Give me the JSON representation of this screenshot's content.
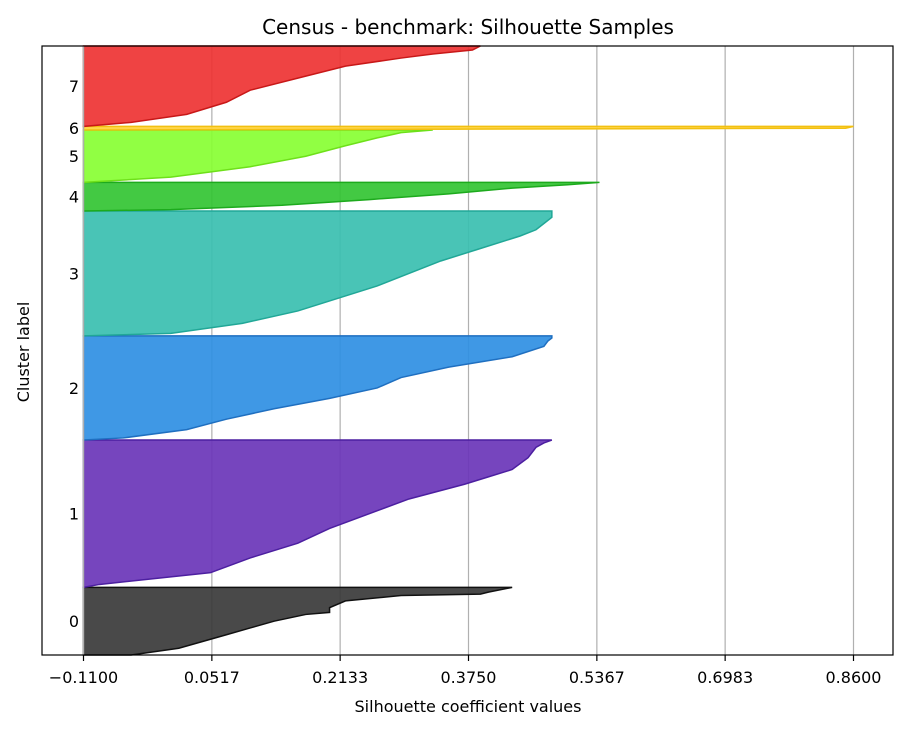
{
  "chart_data": {
    "type": "area",
    "title": "Census - benchmark: Silhouette Samples",
    "xlabel": "Silhouette coefficient values",
    "ylabel": "Cluster label",
    "xlim": [
      -0.11,
      0.86
    ],
    "xticks": [
      -0.11,
      0.0517,
      0.2133,
      0.375,
      0.5367,
      0.6983,
      0.86
    ],
    "xtick_labels": [
      "−0.1100",
      "0.0517",
      "0.2133",
      "0.3750",
      "0.5367",
      "0.6983",
      "0.8600"
    ],
    "ylim": [
      0,
      100
    ],
    "grid": "vertical",
    "legend": "none",
    "clusters": [
      {
        "label": "0",
        "color": "#3a3a3a",
        "edge": "#111111",
        "y_range": [
          0,
          11.1
        ],
        "points": [
          [
            1.0,
            0.43
          ],
          [
            0.93,
            0.4
          ],
          [
            0.9,
            0.39
          ],
          [
            0.88,
            0.29
          ],
          [
            0.8,
            0.22
          ],
          [
            0.7,
            0.2
          ],
          [
            0.63,
            0.2
          ],
          [
            0.6,
            0.17
          ],
          [
            0.5,
            0.13
          ],
          [
            0.4,
            0.1
          ],
          [
            0.3,
            0.07
          ],
          [
            0.2,
            0.04
          ],
          [
            0.1,
            0.01
          ],
          [
            0.0,
            -0.05
          ]
        ]
      },
      {
        "label": "1",
        "color": "#6a35b8",
        "edge": "#4c1fa0",
        "y_range": [
          11.1,
          35.3
        ],
        "points": [
          [
            1.0,
            0.48
          ],
          [
            0.98,
            0.47
          ],
          [
            0.95,
            0.46
          ],
          [
            0.88,
            0.45
          ],
          [
            0.8,
            0.43
          ],
          [
            0.75,
            0.4
          ],
          [
            0.7,
            0.37
          ],
          [
            0.6,
            0.3
          ],
          [
            0.5,
            0.25
          ],
          [
            0.4,
            0.2
          ],
          [
            0.3,
            0.16
          ],
          [
            0.2,
            0.1
          ],
          [
            0.1,
            0.05
          ],
          [
            0.02,
            -0.09
          ],
          [
            0.0,
            -0.11
          ]
        ]
      },
      {
        "label": "2",
        "color": "#2f8fe3",
        "edge": "#1f6fc0",
        "y_range": [
          35.3,
          52.4
        ],
        "points": [
          [
            1.0,
            0.48
          ],
          [
            0.98,
            0.48
          ],
          [
            0.95,
            0.475
          ],
          [
            0.9,
            0.47
          ],
          [
            0.8,
            0.43
          ],
          [
            0.7,
            0.35
          ],
          [
            0.6,
            0.29
          ],
          [
            0.5,
            0.26
          ],
          [
            0.4,
            0.2
          ],
          [
            0.3,
            0.13
          ],
          [
            0.2,
            0.07
          ],
          [
            0.1,
            0.02
          ],
          [
            0.02,
            -0.06
          ],
          [
            0.0,
            -0.11
          ]
        ]
      },
      {
        "label": "3",
        "color": "#39bfb0",
        "edge": "#21a797",
        "y_range": [
          52.4,
          72.9
        ],
        "points": [
          [
            1.0,
            0.48
          ],
          [
            0.95,
            0.48
          ],
          [
            0.9,
            0.47
          ],
          [
            0.85,
            0.46
          ],
          [
            0.8,
            0.44
          ],
          [
            0.7,
            0.39
          ],
          [
            0.6,
            0.34
          ],
          [
            0.5,
            0.3
          ],
          [
            0.4,
            0.26
          ],
          [
            0.3,
            0.21
          ],
          [
            0.2,
            0.16
          ],
          [
            0.1,
            0.09
          ],
          [
            0.02,
            0.0
          ],
          [
            0.0,
            -0.11
          ]
        ]
      },
      {
        "label": "4",
        "color": "#33c433",
        "edge": "#1daa1d",
        "y_range": [
          72.9,
          77.6
        ],
        "points": [
          [
            1.0,
            0.54
          ],
          [
            0.92,
            0.5
          ],
          [
            0.8,
            0.43
          ],
          [
            0.6,
            0.35
          ],
          [
            0.4,
            0.25
          ],
          [
            0.2,
            0.14
          ],
          [
            0.05,
            0.0
          ],
          [
            0.0,
            -0.11
          ]
        ]
      },
      {
        "label": "5",
        "color": "#88ff33",
        "edge": "#6ee01a",
        "y_range": [
          77.6,
          86.2
        ],
        "points": [
          [
            1.0,
            0.33
          ],
          [
            0.95,
            0.29
          ],
          [
            0.85,
            0.26
          ],
          [
            0.7,
            0.22
          ],
          [
            0.5,
            0.17
          ],
          [
            0.3,
            0.1
          ],
          [
            0.1,
            0.0
          ],
          [
            0.0,
            -0.11
          ]
        ]
      },
      {
        "label": "6",
        "color": "#ffd23a",
        "edge": "#f2c010",
        "y_range": [
          86.2,
          86.8
        ],
        "points": [
          [
            1.0,
            0.86
          ],
          [
            0.5,
            0.85
          ],
          [
            0.0,
            -0.11
          ]
        ]
      },
      {
        "label": "7",
        "color": "#ee3333",
        "edge": "#c81818",
        "y_range": [
          86.8,
          100
        ],
        "points": [
          [
            1.0,
            0.39
          ],
          [
            0.95,
            0.38
          ],
          [
            0.9,
            0.33
          ],
          [
            0.85,
            0.29
          ],
          [
            0.75,
            0.22
          ],
          [
            0.6,
            0.16
          ],
          [
            0.45,
            0.1
          ],
          [
            0.3,
            0.07
          ],
          [
            0.15,
            0.02
          ],
          [
            0.05,
            -0.05
          ],
          [
            0.0,
            -0.11
          ]
        ]
      }
    ]
  }
}
